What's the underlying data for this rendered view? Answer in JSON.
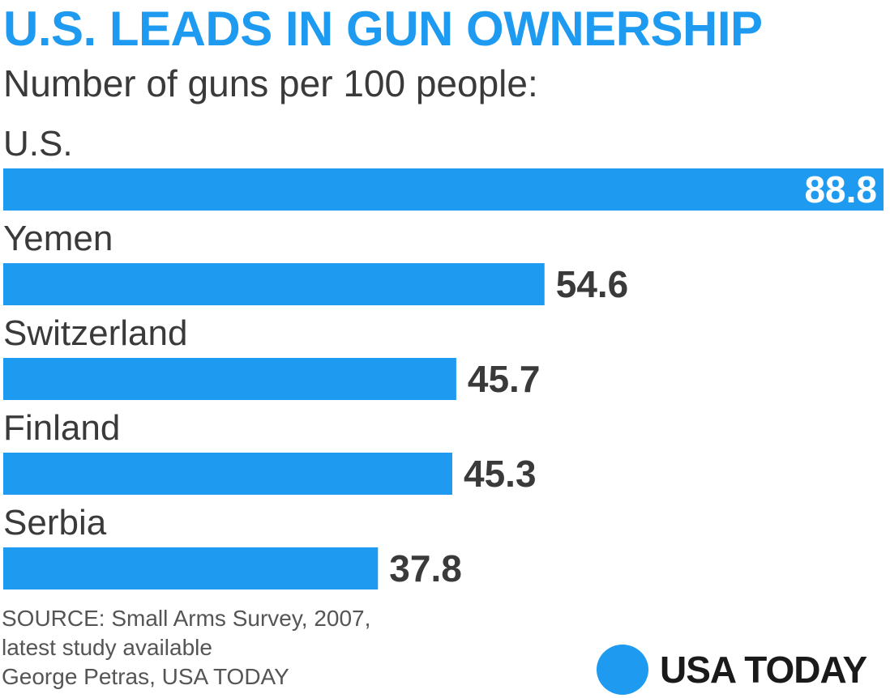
{
  "chart_data": {
    "type": "bar",
    "orientation": "horizontal",
    "title": "U.S. LEADS IN GUN OWNERSHIP",
    "subtitle": "Number of guns per 100 people:",
    "categories": [
      "U.S.",
      "Yemen",
      "Switzerland",
      "Finland",
      "Serbia"
    ],
    "values": [
      88.8,
      54.6,
      45.7,
      45.3,
      37.8
    ],
    "value_labels": [
      "88.8",
      "54.6",
      "45.7",
      "45.3",
      "37.8"
    ],
    "bar_color": "#1e9bf0",
    "label_color": "#3a3a3a",
    "grid": false,
    "legend": "none"
  },
  "footer": {
    "source_line1": "SOURCE:  Small Arms Survey, 2007,",
    "source_line2": "latest study available",
    "credit": "George Petras, USA TODAY"
  },
  "logo": {
    "text": "USA TODAY"
  }
}
